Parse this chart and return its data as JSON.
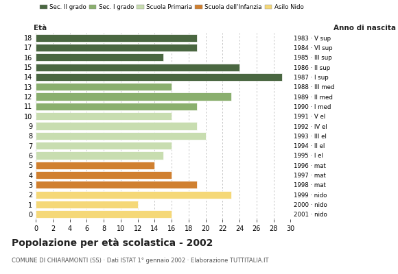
{
  "ages": [
    18,
    17,
    16,
    15,
    14,
    13,
    12,
    11,
    10,
    9,
    8,
    7,
    6,
    5,
    4,
    3,
    2,
    1,
    0
  ],
  "values": [
    19,
    19,
    15,
    24,
    29,
    16,
    23,
    19,
    16,
    19,
    20,
    16,
    15,
    14,
    16,
    19,
    23,
    12,
    16
  ],
  "anno_nascita": [
    "1983 · V sup",
    "1984 · VI sup",
    "1985 · III sup",
    "1986 · II sup",
    "1987 · I sup",
    "1988 · III med",
    "1989 · II med",
    "1990 · I med",
    "1991 · V el",
    "1992 · IV el",
    "1993 · III el",
    "1994 · II el",
    "1995 · I el",
    "1996 · mat",
    "1997 · mat",
    "1998 · mat",
    "1999 · nido",
    "2000 · nido",
    "2001 · nido"
  ],
  "colors": {
    "sec2": "#4a6741",
    "sec1": "#8aaf6e",
    "primaria": "#c8ddb0",
    "infanzia": "#d08030",
    "nido": "#f5d878"
  },
  "category_colors": [
    "sec2",
    "sec2",
    "sec2",
    "sec2",
    "sec2",
    "sec1",
    "sec1",
    "sec1",
    "primaria",
    "primaria",
    "primaria",
    "primaria",
    "primaria",
    "infanzia",
    "infanzia",
    "infanzia",
    "nido",
    "nido",
    "nido"
  ],
  "legend_labels": [
    "Sec. II grado",
    "Sec. I grado",
    "Scuola Primaria",
    "Scuola dell'Infanzia",
    "Asilo Nido"
  ],
  "legend_colors": [
    "#4a6741",
    "#8aaf6e",
    "#c8ddb0",
    "#d08030",
    "#f5d878"
  ],
  "title": "Popolazione per età scolastica - 2002",
  "subtitle": "COMUNE DI CHIARAMONTI (SS) · Dati ISTAT 1° gennaio 2002 · Elaborazione TUTTITALIA.IT",
  "xlabel_eta": "Età",
  "xlabel_anno": "Anno di nascita",
  "xlim": [
    0,
    30
  ],
  "xticks": [
    0,
    2,
    4,
    6,
    8,
    10,
    12,
    14,
    16,
    18,
    20,
    22,
    24,
    26,
    28,
    30
  ],
  "background_color": "#ffffff",
  "grid_color": "#bbbbbb"
}
